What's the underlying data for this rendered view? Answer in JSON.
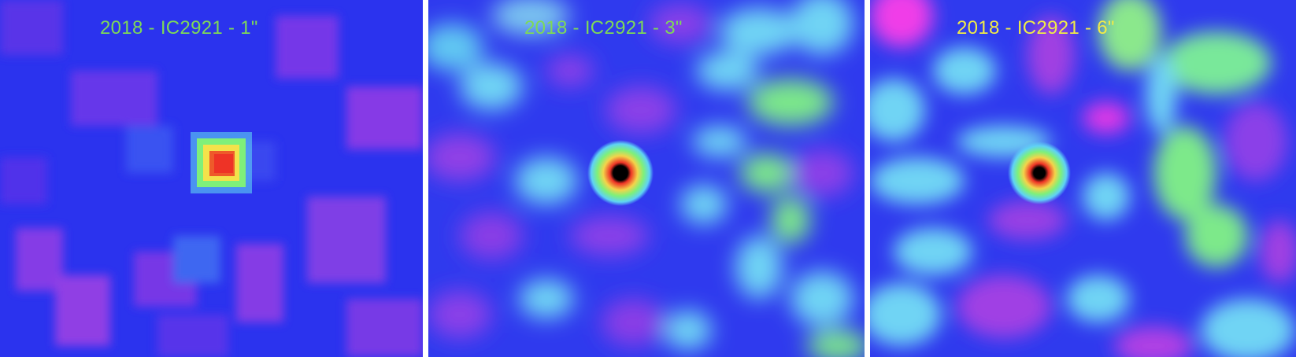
{
  "panels": [
    {
      "label": "2018 - IC2921 - 1\"",
      "label_color": "#7ed957",
      "smoothing": "1\""
    },
    {
      "label": "2018 - IC2921 - 3\"",
      "label_color": "#7ed957",
      "smoothing": "3\""
    },
    {
      "label": "2018 - IC2921 - 6\"",
      "label_color": "#f1ec46",
      "smoothing": "6\""
    }
  ],
  "colormap": {
    "background": "#2b35f0",
    "low": "#8a3ff0",
    "mid": "#6fd6f6",
    "high": "#7cf07c",
    "peak_outer": "#f4e04a",
    "peak": "#ee3b2a",
    "core": "#000000"
  }
}
